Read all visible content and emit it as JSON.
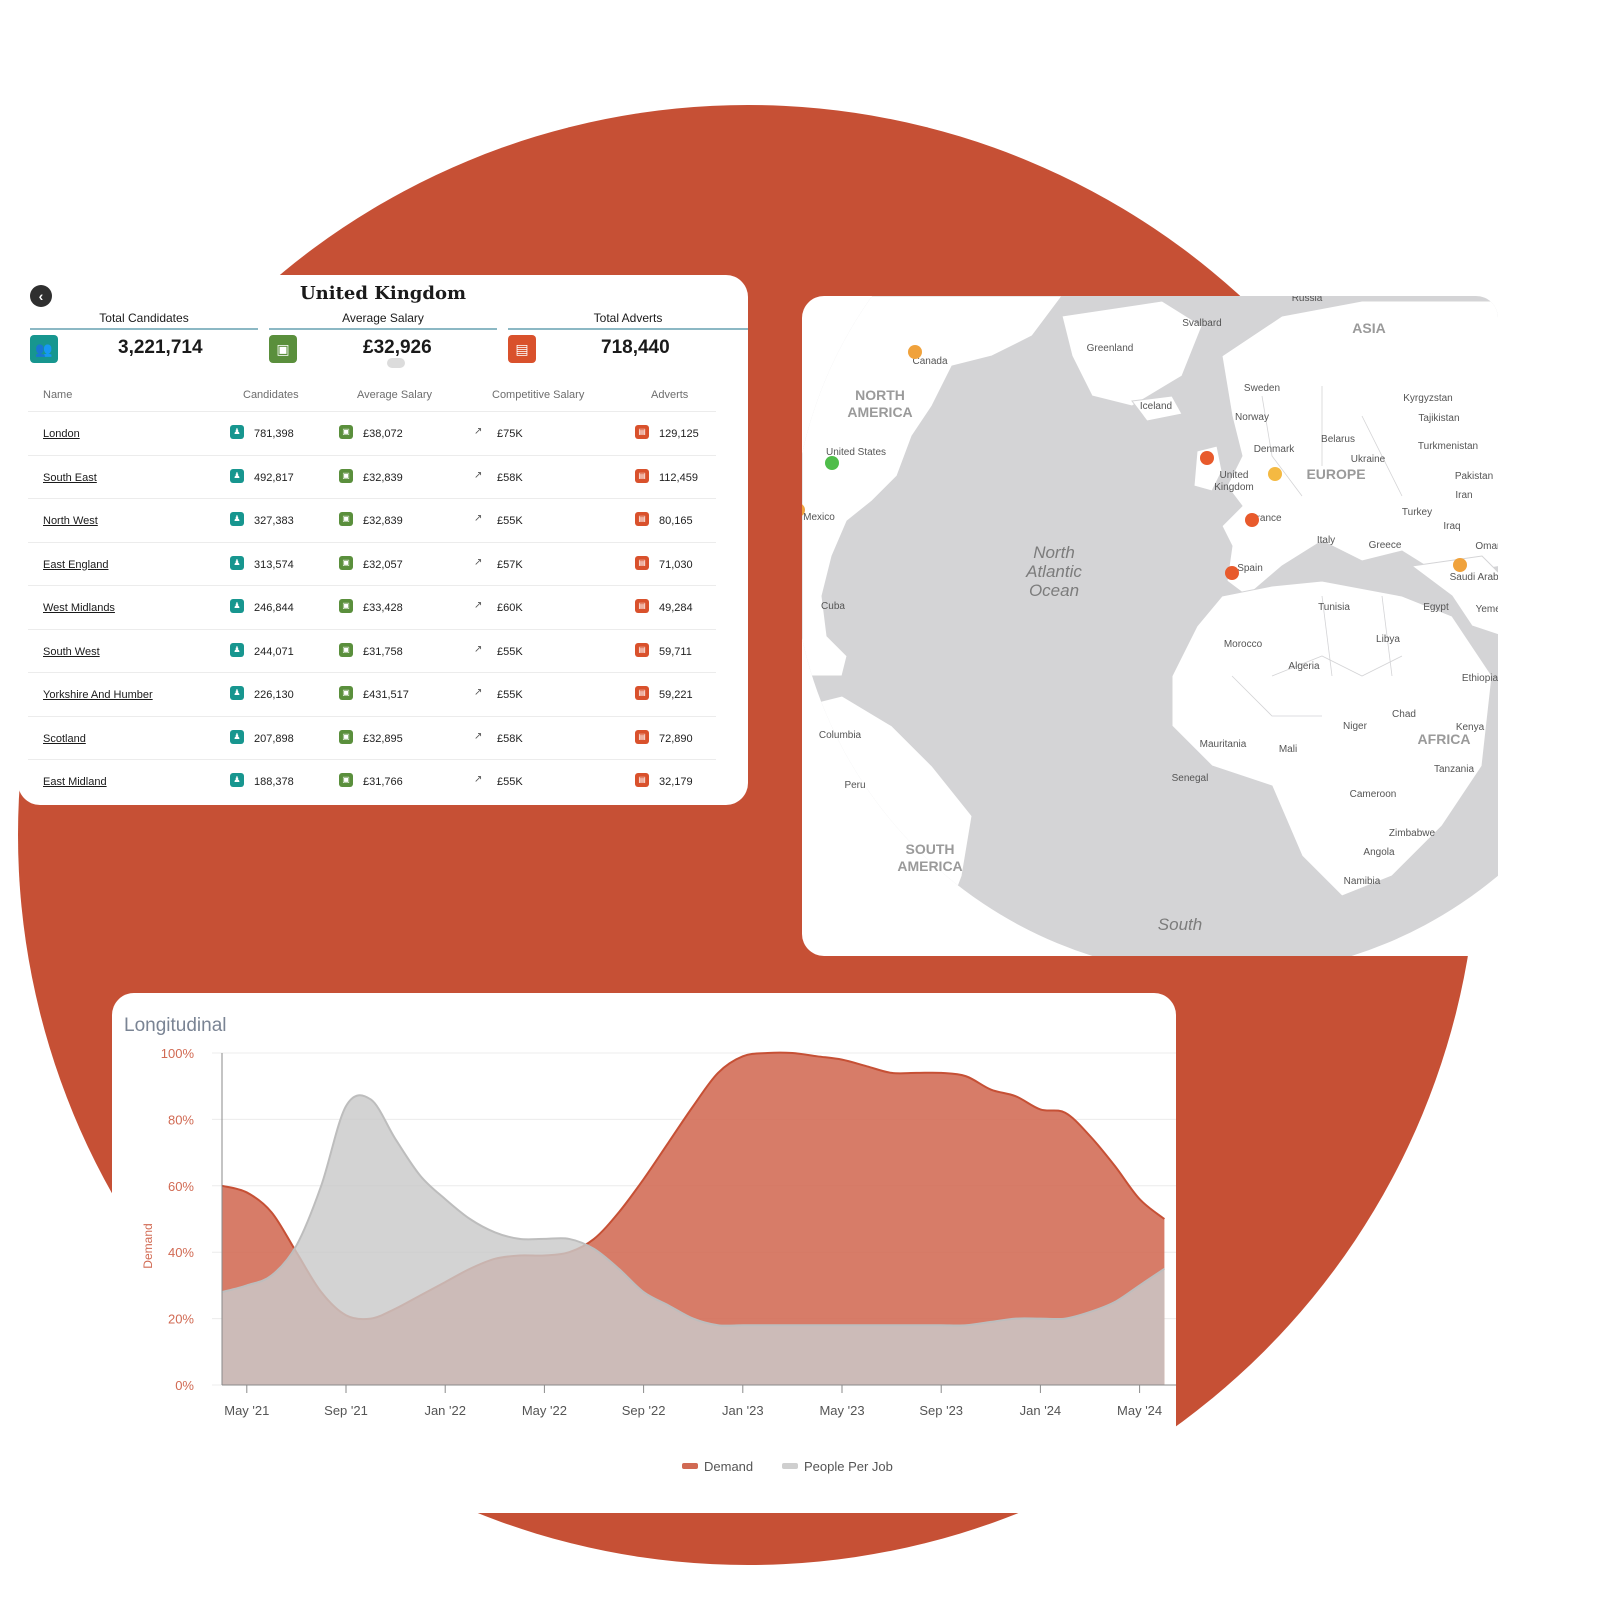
{
  "colors": {
    "background_circle": "#c65035",
    "demand": "#d16a53",
    "people_per_job": "#cfcfcf",
    "candidates_icon": "#17968f",
    "salary_icon": "#5a8f3c",
    "adverts_icon": "#d9512c"
  },
  "table_panel": {
    "title": "United Kingdom",
    "kpis": [
      {
        "label": "Total Candidates",
        "value": "3,221,714",
        "icon": "users-icon"
      },
      {
        "label": "Average Salary",
        "value": "£32,926",
        "icon": "banknote-icon"
      },
      {
        "label": "Total Adverts",
        "value": "718,440",
        "icon": "newspaper-icon"
      }
    ],
    "columns": [
      "Name",
      "Candidates",
      "Average Salary",
      "Competitive Salary",
      "Adverts"
    ],
    "rows": [
      {
        "name": "London",
        "candidates": "781,398",
        "avg_salary": "£38,072",
        "competitive": "£75K",
        "adverts": "129,125"
      },
      {
        "name": "South East",
        "candidates": "492,817",
        "avg_salary": "£32,839",
        "competitive": "£58K",
        "adverts": "112,459"
      },
      {
        "name": "North West",
        "candidates": "327,383",
        "avg_salary": "£32,839",
        "competitive": "£55K",
        "adverts": "80,165"
      },
      {
        "name": "East England",
        "candidates": "313,574",
        "avg_salary": "£32,057",
        "competitive": "£57K",
        "adverts": "71,030"
      },
      {
        "name": "West Midlands",
        "candidates": "246,844",
        "avg_salary": "£33,428",
        "competitive": "£60K",
        "adverts": "49,284"
      },
      {
        "name": "South West",
        "candidates": "244,071",
        "avg_salary": "£31,758",
        "competitive": "£55K",
        "adverts": "59,711"
      },
      {
        "name": "Yorkshire And Humber",
        "candidates": "226,130",
        "avg_salary": "£431,517",
        "competitive": "£55K",
        "adverts": "59,221"
      },
      {
        "name": "Scotland",
        "candidates": "207,898",
        "avg_salary": "£32,895",
        "competitive": "£58K",
        "adverts": "72,890"
      },
      {
        "name": "East Midland",
        "candidates": "188,378",
        "avg_salary": "£31,766",
        "competitive": "£55K",
        "adverts": "32,179"
      }
    ]
  },
  "map_panel": {
    "region_labels": [
      "NORTH AMERICA",
      "SOUTH AMERICA",
      "EUROPE",
      "AFRICA",
      "ASIA"
    ],
    "ocean_labels": [
      "North Atlantic Ocean",
      "South"
    ],
    "country_labels": [
      "Russia",
      "Svalbard",
      "Greenland",
      "Canada",
      "Iceland",
      "Sweden",
      "Norway",
      "Denmark",
      "Belarus",
      "Ukraine",
      "United States",
      "United Kingdom",
      "Mexico",
      "France",
      "Italy",
      "Greece",
      "Turkey",
      "Spain",
      "Cuba",
      "Tunisia",
      "Libya",
      "Egypt",
      "Morocco",
      "Algeria",
      "Columbia",
      "Mauritania",
      "Mali",
      "Niger",
      "Chad",
      "Senegal",
      "Peru",
      "Cameroon",
      "Zimbabwe",
      "Angola",
      "Namibia",
      "Kenya",
      "Tanzania",
      "Ethiopia",
      "Yemen",
      "Saudi Arabia",
      "Oman",
      "Iraq",
      "Iran",
      "Pakistan",
      "Turkmenistan",
      "Tajikistan",
      "Kyrgyzstan"
    ],
    "markers": [
      {
        "country": "Canada",
        "color": "#f0a23c"
      },
      {
        "country": "United States",
        "color": "#4fbd4a"
      },
      {
        "country": "Mexico",
        "color": "#f0a23c"
      },
      {
        "country": "United Kingdom",
        "color": "#e85a2c"
      },
      {
        "country": "Germany",
        "color": "#f4b942"
      },
      {
        "country": "France",
        "color": "#e85a2c"
      },
      {
        "country": "Spain",
        "color": "#e85a2c"
      },
      {
        "country": "Saudi Arabia",
        "color": "#f0a23c"
      }
    ]
  },
  "chart_panel": {
    "title": "Longitudinal",
    "ylabel": "Demand",
    "legend": [
      {
        "name": "Demand",
        "color": "#d16a53"
      },
      {
        "name": "People Per Job",
        "color": "#cfcfcf"
      }
    ]
  },
  "chart_data": {
    "type": "area",
    "title": "Longitudinal",
    "xlabel": "",
    "ylabel": "Demand",
    "ylim": [
      0,
      100
    ],
    "y_ticks": [
      "0%",
      "20%",
      "40%",
      "60%",
      "80%",
      "100%"
    ],
    "x_ticks": [
      "May '21",
      "Sep '21",
      "Jan '22",
      "May '22",
      "Sep '22",
      "Jan '23",
      "May '23",
      "Sep '23",
      "Jan '24",
      "May '24"
    ],
    "x_start": "2021-04",
    "x": [
      "2021-04",
      "2021-05",
      "2021-06",
      "2021-07",
      "2021-08",
      "2021-09",
      "2021-10",
      "2021-11",
      "2021-12",
      "2022-01",
      "2022-02",
      "2022-03",
      "2022-04",
      "2022-05",
      "2022-06",
      "2022-07",
      "2022-08",
      "2022-09",
      "2022-10",
      "2022-11",
      "2022-12",
      "2023-01",
      "2023-02",
      "2023-03",
      "2023-04",
      "2023-05",
      "2023-06",
      "2023-07",
      "2023-08",
      "2023-09",
      "2023-10",
      "2023-11",
      "2023-12",
      "2024-01",
      "2024-02",
      "2024-03",
      "2024-04",
      "2024-05",
      "2024-06"
    ],
    "legend_position": "bottom",
    "grid": true,
    "series": [
      {
        "name": "Demand",
        "values": [
          60,
          58,
          52,
          40,
          28,
          21,
          20,
          23,
          27,
          31,
          35,
          38,
          39,
          39,
          40,
          44,
          52,
          62,
          73,
          84,
          94,
          99,
          100,
          100,
          99,
          98,
          96,
          94,
          94,
          94,
          93,
          89,
          87,
          83,
          82,
          75,
          66,
          56,
          50
        ]
      },
      {
        "name": "People Per Job",
        "values": [
          28,
          30,
          33,
          42,
          60,
          84,
          86,
          74,
          63,
          56,
          50,
          46,
          44,
          44,
          44,
          41,
          35,
          28,
          24,
          20,
          18,
          18,
          18,
          18,
          18,
          18,
          18,
          18,
          18,
          18,
          18,
          19,
          20,
          20,
          20,
          22,
          25,
          30,
          35
        ]
      }
    ]
  }
}
